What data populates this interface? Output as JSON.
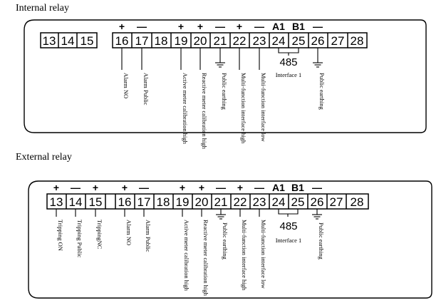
{
  "internal": {
    "title": "Internal relay",
    "terminals_plain": [
      "13",
      "14",
      "15"
    ],
    "terminals": [
      "16",
      "17",
      "18",
      "19",
      "20",
      "21",
      "22",
      "23",
      "24",
      "25",
      "26",
      "27",
      "28"
    ],
    "signs": {
      "plus": "+",
      "minus": "—",
      "a1": "A1",
      "b1": "B1"
    },
    "labels": {
      "t16": "Alarm NO",
      "t17": "Alarm Public",
      "t19": "Active meter calibration high",
      "t20": "Reactive meter calibration high",
      "t21": "Public earthing",
      "t22": "Multi-function interface high",
      "t23": "Multi-function interface low",
      "t26": "Public earthing",
      "rs485": "485",
      "interface": "Interface 1"
    }
  },
  "external": {
    "title": "External relay",
    "terminals": [
      "13",
      "14",
      "15",
      "16",
      "17",
      "18",
      "19",
      "20",
      "21",
      "22",
      "23",
      "24",
      "25",
      "26",
      "27",
      "28"
    ],
    "signs": {
      "plus": "+",
      "minus": "—",
      "a1": "A1",
      "b1": "B1"
    },
    "labels": {
      "t13": "Tripping ON",
      "t14": "Tripping Public",
      "t15": "TrippingNC",
      "t16": "Alarm NO",
      "t17": "Alarm Public",
      "t19": "Active meter calibration high",
      "t20": "Reactive meter calibration high",
      "t21": "Public earthing",
      "t22": "Multi-function interface high",
      "t23": "Multi-function interface low",
      "t26": "Public earthing",
      "rs485": "485",
      "interface": "Interface 1"
    }
  }
}
